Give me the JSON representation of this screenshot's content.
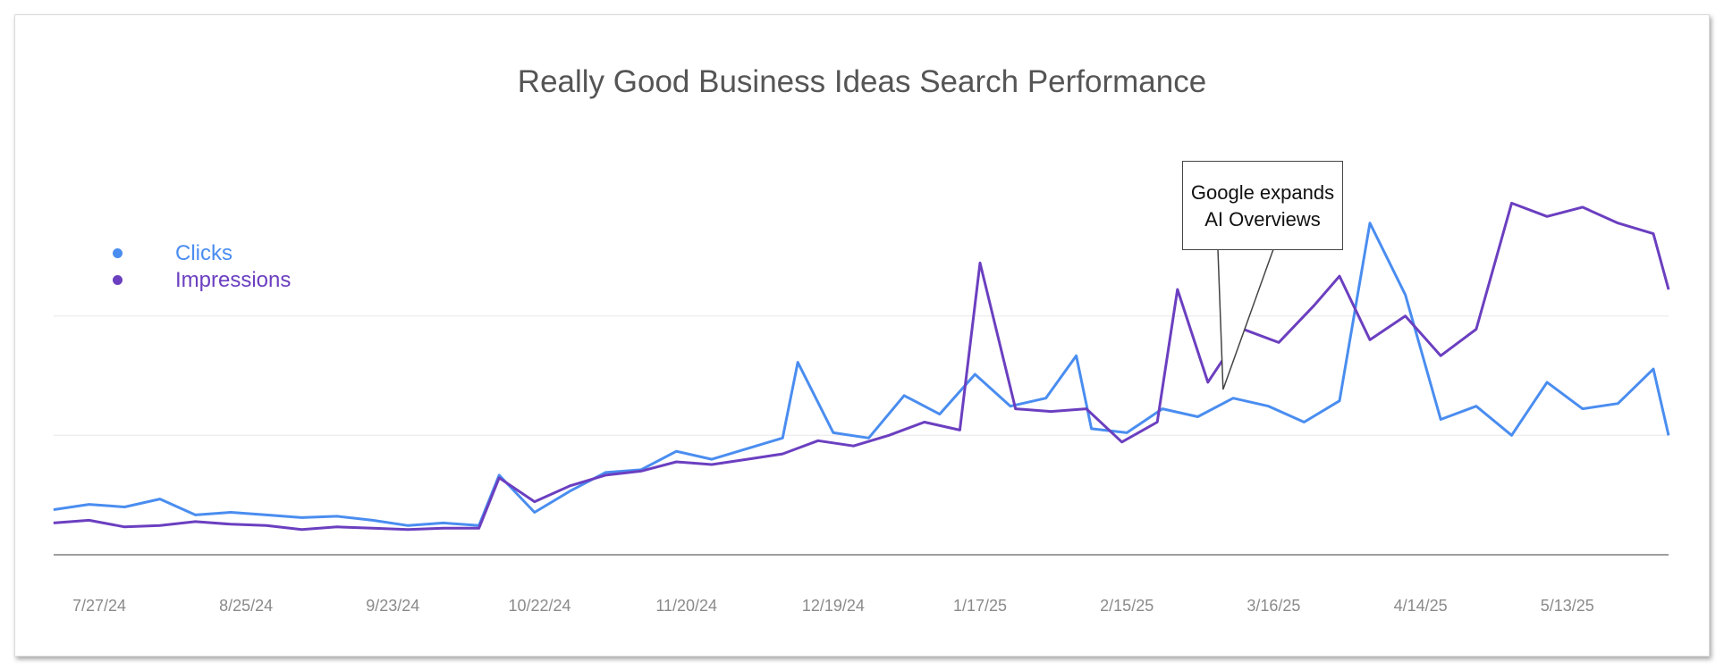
{
  "chart_data": {
    "type": "line",
    "title": "Really Good Business Ideas Search Performance",
    "x_tick_labels": [
      "7/27/24",
      "8/25/24",
      "9/23/24",
      "10/22/24",
      "11/20/24",
      "12/19/24",
      "1/17/25",
      "2/15/25",
      "3/16/25",
      "4/14/25",
      "5/13/25"
    ],
    "x_range": [
      "7/18/24",
      "6/2/25"
    ],
    "grid": "horizontal",
    "legend_position": "left",
    "annotation": {
      "text_line1": "Google expands",
      "text_line2": "AI Overviews",
      "date": "3/6/25"
    },
    "series": [
      {
        "name": "Clicks",
        "color": "#4a8df0",
        "points": [
          [
            "7/18/24",
            34
          ],
          [
            "7/25/24",
            38
          ],
          [
            "8/1/24",
            36
          ],
          [
            "8/8/24",
            42
          ],
          [
            "8/15/24",
            30
          ],
          [
            "8/22/24",
            32
          ],
          [
            "8/29/24",
            30
          ],
          [
            "9/5/24",
            28
          ],
          [
            "9/12/24",
            29
          ],
          [
            "9/19/24",
            26
          ],
          [
            "9/26/24",
            22
          ],
          [
            "10/3/24",
            24
          ],
          [
            "10/10/24",
            22
          ],
          [
            "10/14/24",
            60
          ],
          [
            "10/21/24",
            32
          ],
          [
            "10/28/24",
            48
          ],
          [
            "11/4/24",
            62
          ],
          [
            "11/11/24",
            64
          ],
          [
            "11/18/24",
            78
          ],
          [
            "11/25/24",
            72
          ],
          [
            "12/2/24",
            80
          ],
          [
            "12/9/24",
            88
          ],
          [
            "12/12/24",
            145
          ],
          [
            "12/19/24",
            92
          ],
          [
            "12/26/24",
            88
          ],
          [
            "1/2/25",
            120
          ],
          [
            "1/9/25",
            106
          ],
          [
            "1/16/25",
            136
          ],
          [
            "1/23/25",
            112
          ],
          [
            "1/30/25",
            118
          ],
          [
            "2/5/25",
            150
          ],
          [
            "2/8/25",
            95
          ],
          [
            "2/15/25",
            92
          ],
          [
            "2/22/25",
            110
          ],
          [
            "3/1/25",
            104
          ],
          [
            "3/8/25",
            118
          ],
          [
            "3/15/25",
            112
          ],
          [
            "3/22/25",
            100
          ],
          [
            "3/29/25",
            116
          ],
          [
            "4/4/25",
            250
          ],
          [
            "4/11/25",
            196
          ],
          [
            "4/18/25",
            102
          ],
          [
            "4/25/25",
            112
          ],
          [
            "5/2/25",
            90
          ],
          [
            "5/9/25",
            130
          ],
          [
            "5/16/25",
            110
          ],
          [
            "5/23/25",
            114
          ],
          [
            "5/30/25",
            140
          ],
          [
            "6/2/25",
            90
          ]
        ]
      },
      {
        "name": "Impressions",
        "color": "#6b3fc0",
        "points": [
          [
            "7/18/24",
            24
          ],
          [
            "7/25/24",
            26
          ],
          [
            "8/1/24",
            21
          ],
          [
            "8/8/24",
            22
          ],
          [
            "8/15/24",
            25
          ],
          [
            "8/22/24",
            23
          ],
          [
            "8/29/24",
            22
          ],
          [
            "9/5/24",
            19
          ],
          [
            "9/12/24",
            21
          ],
          [
            "9/19/24",
            20
          ],
          [
            "9/26/24",
            19
          ],
          [
            "10/3/24",
            20
          ],
          [
            "10/10/24",
            20
          ],
          [
            "10/14/24",
            58
          ],
          [
            "10/21/24",
            40
          ],
          [
            "10/28/24",
            52
          ],
          [
            "11/4/24",
            60
          ],
          [
            "11/11/24",
            63
          ],
          [
            "11/18/24",
            70
          ],
          [
            "11/25/24",
            68
          ],
          [
            "12/2/24",
            72
          ],
          [
            "12/9/24",
            76
          ],
          [
            "12/16/24",
            86
          ],
          [
            "12/23/24",
            82
          ],
          [
            "12/30/24",
            90
          ],
          [
            "1/6/25",
            100
          ],
          [
            "1/13/25",
            94
          ],
          [
            "1/17/25",
            220
          ],
          [
            "1/24/25",
            110
          ],
          [
            "1/31/25",
            108
          ],
          [
            "2/7/25",
            110
          ],
          [
            "2/14/25",
            85
          ],
          [
            "2/21/25",
            100
          ],
          [
            "2/25/25",
            200
          ],
          [
            "3/3/25",
            130
          ],
          [
            "3/10/25",
            170
          ],
          [
            "3/17/25",
            160
          ],
          [
            "3/24/25",
            188
          ],
          [
            "3/29/25",
            210
          ],
          [
            "4/4/25",
            162
          ],
          [
            "4/11/25",
            180
          ],
          [
            "4/18/25",
            150
          ],
          [
            "4/25/25",
            170
          ],
          [
            "5/2/25",
            265
          ],
          [
            "5/9/25",
            255
          ],
          [
            "5/16/25",
            262
          ],
          [
            "5/23/25",
            250
          ],
          [
            "5/30/25",
            242
          ],
          [
            "6/2/25",
            200
          ]
        ]
      }
    ]
  }
}
